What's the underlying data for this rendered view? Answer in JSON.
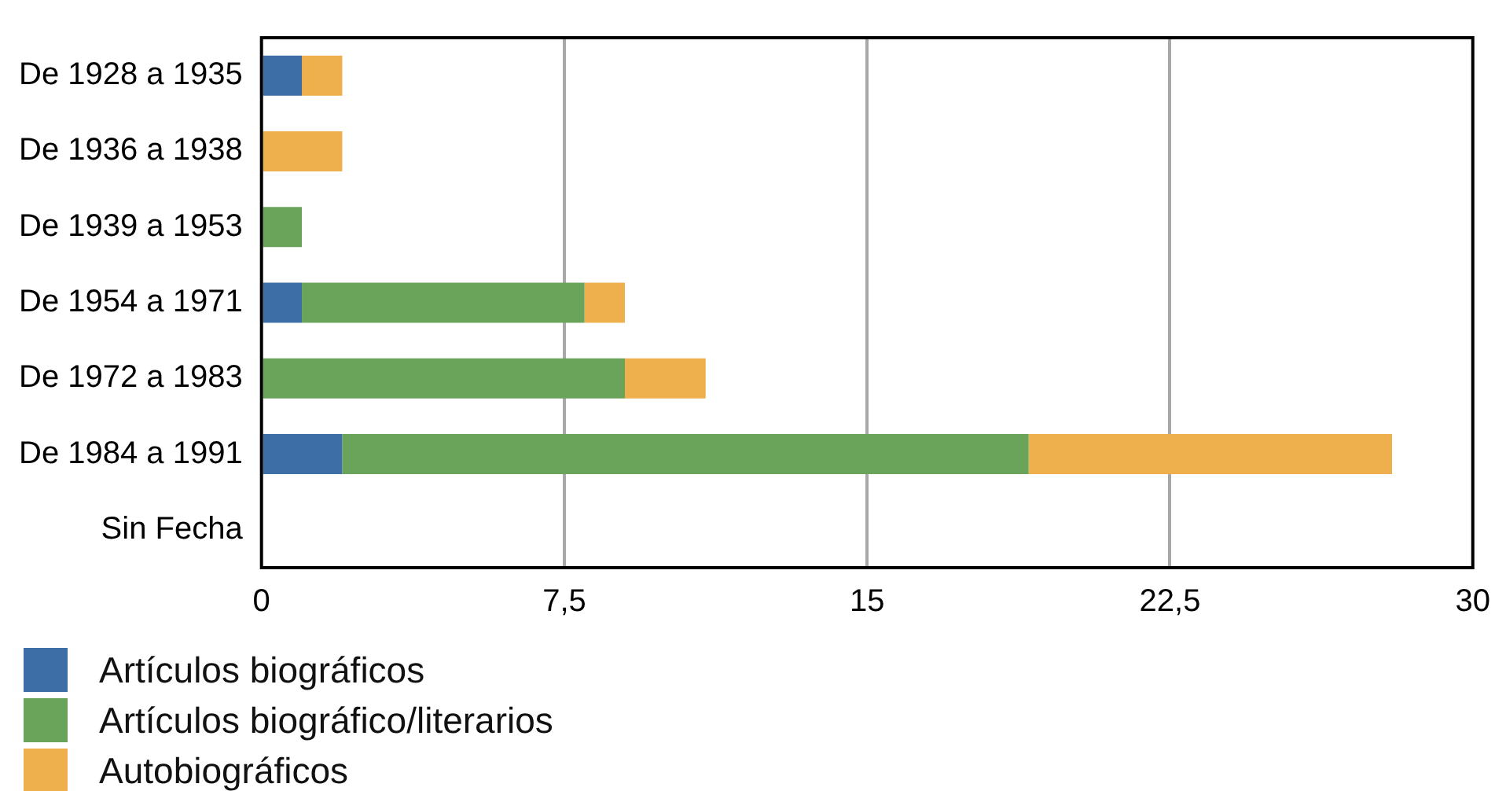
{
  "chart_data": {
    "type": "bar",
    "orientation": "horizontal",
    "stacked": true,
    "categories": [
      "De 1928 a 1935",
      "De 1936 a 1938",
      "De 1939 a 1953",
      "De 1954 a 1971",
      "De 1972 a 1983",
      "De 1984 a 1991",
      "Sin Fecha"
    ],
    "series": [
      {
        "name": "Artículos biográficos",
        "color": "#3d6ea6",
        "values": [
          1,
          0,
          0,
          1,
          0,
          2,
          0
        ]
      },
      {
        "name": "Artículos biográfico/literarios",
        "color": "#6aa35a",
        "values": [
          0,
          0,
          1,
          7,
          9,
          17,
          0
        ]
      },
      {
        "name": "Autobiográficos",
        "color": "#eeb04c",
        "values": [
          1,
          2,
          0,
          1,
          2,
          9,
          0
        ]
      }
    ],
    "xlim": [
      0,
      30
    ],
    "xticks": [
      0,
      {
        "value": 7.5,
        "label": "7,5"
      },
      15,
      {
        "value": 22.5,
        "label": "22,5"
      },
      30
    ],
    "grid": "x",
    "legend": "bottom left"
  }
}
